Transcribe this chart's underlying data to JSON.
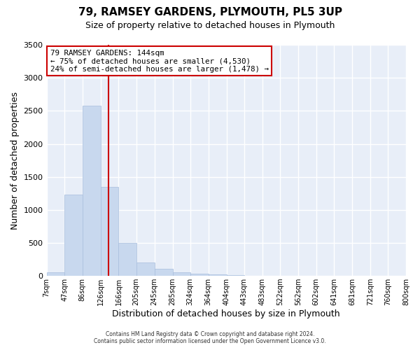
{
  "title": "79, RAMSEY GARDENS, PLYMOUTH, PL5 3UP",
  "subtitle": "Size of property relative to detached houses in Plymouth",
  "xlabel": "Distribution of detached houses by size in Plymouth",
  "ylabel": "Number of detached properties",
  "bar_color": "#c8d8ee",
  "bar_edgecolor": "#a8bedd",
  "background_color": "#e8eef8",
  "grid_color": "#ffffff",
  "bin_edges": [
    7,
    47,
    86,
    126,
    166,
    205,
    245,
    285,
    324,
    364,
    404,
    443,
    483,
    522,
    562,
    602,
    641,
    681,
    721,
    760,
    800
  ],
  "bar_heights": [
    50,
    1230,
    2580,
    1350,
    500,
    200,
    110,
    55,
    35,
    20,
    10,
    5,
    2,
    0,
    0,
    0,
    0,
    0,
    0,
    0
  ],
  "red_line_x": 144,
  "red_line_color": "#cc0000",
  "annotation_text": "79 RAMSEY GARDENS: 144sqm\n← 75% of detached houses are smaller (4,530)\n24% of semi-detached houses are larger (1,478) →",
  "annotation_box_color": "#ffffff",
  "annotation_box_edgecolor": "#cc0000",
  "ylim": [
    0,
    3500
  ],
  "yticks": [
    0,
    500,
    1000,
    1500,
    2000,
    2500,
    3000,
    3500
  ],
  "footer_line1": "Contains HM Land Registry data © Crown copyright and database right 2024.",
  "footer_line2": "Contains public sector information licensed under the Open Government Licence v3.0.",
  "tick_labels": [
    "7sqm",
    "47sqm",
    "86sqm",
    "126sqm",
    "166sqm",
    "205sqm",
    "245sqm",
    "285sqm",
    "324sqm",
    "364sqm",
    "404sqm",
    "443sqm",
    "483sqm",
    "522sqm",
    "562sqm",
    "602sqm",
    "641sqm",
    "681sqm",
    "721sqm",
    "760sqm",
    "800sqm"
  ],
  "fig_facecolor": "#ffffff"
}
